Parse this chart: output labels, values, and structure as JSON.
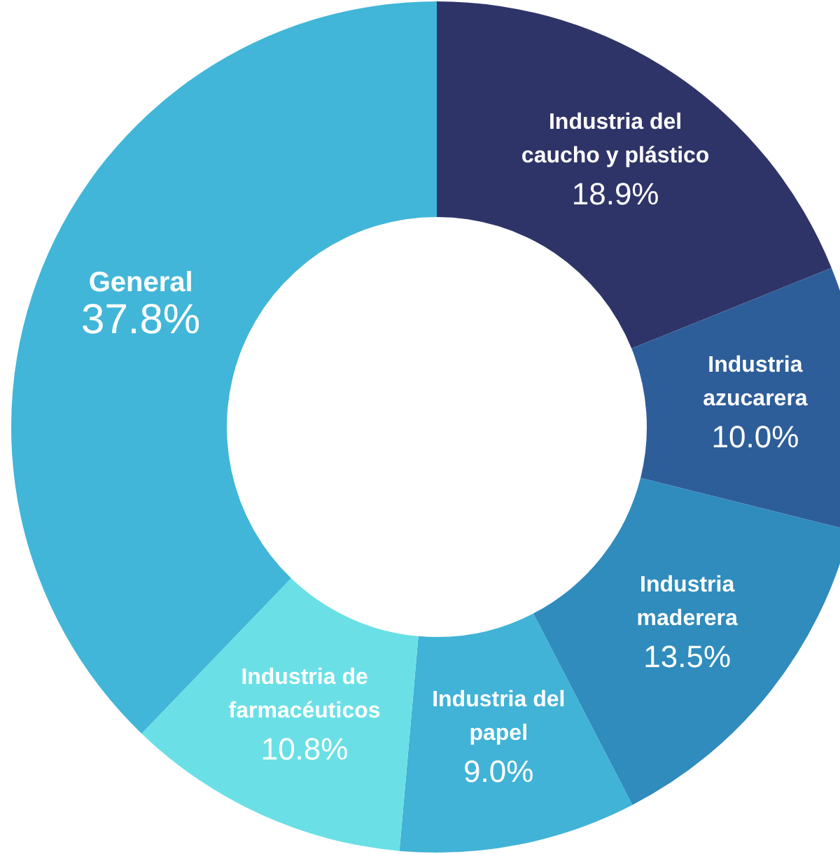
{
  "chart_data": {
    "type": "donut",
    "categories": [
      "Industria del caucho y plástico",
      "Industria azucarera",
      "Industria maderera",
      "Industria del papel",
      "Industria de farmacéuticos",
      "General"
    ],
    "values": [
      18.9,
      10.0,
      13.5,
      9.0,
      10.8,
      37.8
    ],
    "value_labels": [
      "18.9%",
      "10.0%",
      "13.5%",
      "9.0%",
      "10.8%",
      "37.8%"
    ],
    "colors": [
      "#2f3468",
      "#2e5e99",
      "#2f8cbd",
      "#40b3d6",
      "#6ae0e6",
      "#41b6d8"
    ]
  }
}
